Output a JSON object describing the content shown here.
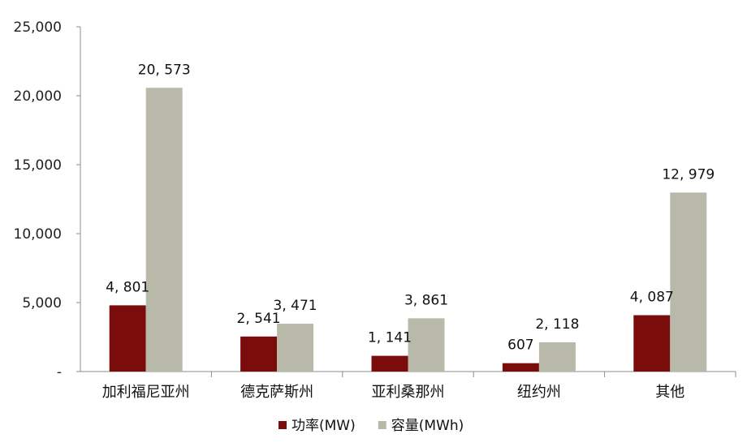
{
  "chart_data": {
    "type": "bar",
    "title": "",
    "xlabel": "",
    "ylabel": "",
    "categories": [
      "加利福尼亚州",
      "德克萨斯州",
      "亚利桑那州",
      "纽约州",
      "其他"
    ],
    "series": [
      {
        "name": "功率(MW)",
        "color": "#7a0c0c",
        "values": [
          4801,
          2541,
          1141,
          607,
          4087
        ],
        "labels": [
          "4, 801",
          "2, 541",
          "1, 141",
          "607",
          "4, 087"
        ]
      },
      {
        "name": "容量(MWh)",
        "color": "#b9b9a9",
        "values": [
          20573,
          3471,
          3861,
          2118,
          12979
        ],
        "labels": [
          "20, 573",
          "3, 471",
          "3, 861",
          "2, 118",
          "12, 979"
        ]
      }
    ],
    "ylim": [
      0,
      25000
    ],
    "yticks": [
      0,
      5000,
      10000,
      15000,
      20000,
      25000
    ],
    "ytick_labels": [
      "-",
      "5,000",
      "10,000",
      "15,000",
      "20,000",
      "25,000"
    ],
    "grid": false,
    "legend_position": "bottom-center"
  }
}
